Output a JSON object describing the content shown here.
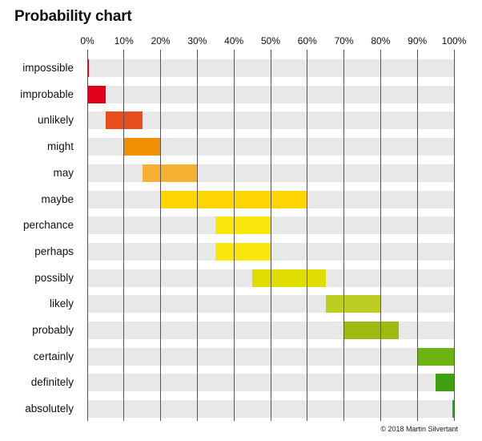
{
  "chart_data": {
    "type": "bar",
    "subtype": "floating-range-bar",
    "title": "Probability chart",
    "xlabel": "",
    "ylabel": "",
    "xlim": [
      0,
      100
    ],
    "x_ticks": [
      "0%",
      "10%",
      "20%",
      "30%",
      "40%",
      "50%",
      "60%",
      "70%",
      "80%",
      "90%",
      "100%"
    ],
    "grid": true,
    "legend": null,
    "categories": [
      "impossible",
      "improbable",
      "unlikely",
      "might",
      "may",
      "maybe",
      "perchance",
      "perhaps",
      "possibly",
      "likely",
      "probably",
      "certainly",
      "definitely",
      "absolutely"
    ],
    "ranges": [
      {
        "label": "impossible",
        "start": 0,
        "end": 0.5,
        "color": "#d9001b"
      },
      {
        "label": "improbable",
        "start": 0,
        "end": 5,
        "color": "#e2001a"
      },
      {
        "label": "unlikely",
        "start": 5,
        "end": 15,
        "color": "#e84e1c"
      },
      {
        "label": "might",
        "start": 10,
        "end": 20,
        "color": "#f09000"
      },
      {
        "label": "may",
        "start": 15,
        "end": 30,
        "color": "#f6b034"
      },
      {
        "label": "maybe",
        "start": 20,
        "end": 60,
        "color": "#ffd500"
      },
      {
        "label": "perchance",
        "start": 35,
        "end": 50,
        "color": "#f8e60c"
      },
      {
        "label": "perhaps",
        "start": 35,
        "end": 50,
        "color": "#f8e60c"
      },
      {
        "label": "possibly",
        "start": 45,
        "end": 65,
        "color": "#dfdd00"
      },
      {
        "label": "likely",
        "start": 65,
        "end": 80,
        "color": "#bdce22"
      },
      {
        "label": "probably",
        "start": 70,
        "end": 85,
        "color": "#9db912"
      },
      {
        "label": "certainly",
        "start": 90,
        "end": 100,
        "color": "#6db314"
      },
      {
        "label": "definitely",
        "start": 95,
        "end": 100,
        "color": "#3ea00e"
      },
      {
        "label": "absolutely",
        "start": 99.5,
        "end": 100,
        "color": "#2ea61a"
      }
    ],
    "credit": "© 2018 Martin Silvertant"
  }
}
